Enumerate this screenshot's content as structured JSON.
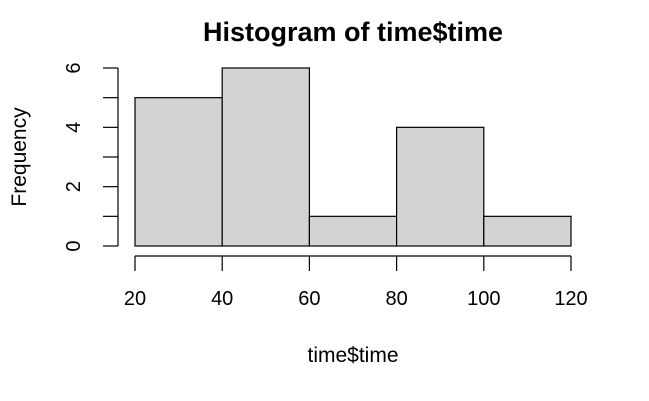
{
  "chart_data": {
    "type": "bar",
    "title": "Histogram of time$time",
    "xlabel": "time$time",
    "ylabel": "Frequency",
    "bins": [
      {
        "from": 20,
        "to": 40,
        "count": 5
      },
      {
        "from": 40,
        "to": 60,
        "count": 6
      },
      {
        "from": 60,
        "to": 80,
        "count": 1
      },
      {
        "from": 80,
        "to": 100,
        "count": 4
      },
      {
        "from": 100,
        "to": 120,
        "count": 1
      }
    ],
    "x_ticks": [
      20,
      40,
      60,
      80,
      100,
      120
    ],
    "y_ticks": [
      0,
      2,
      4,
      6
    ],
    "y_minor_ticks": [
      1,
      3,
      5
    ],
    "xlim": [
      20,
      120
    ],
    "ylim": [
      0,
      6
    ],
    "grid": false,
    "colors": {
      "bar_fill": "#d3d3d3",
      "bar_stroke": "#000000"
    }
  }
}
